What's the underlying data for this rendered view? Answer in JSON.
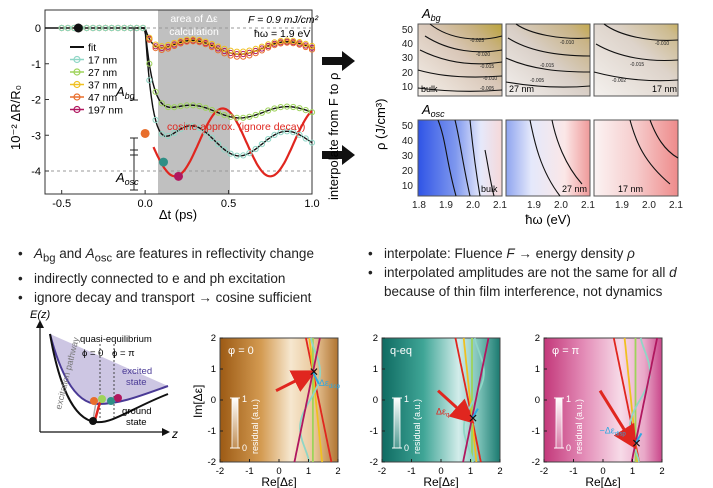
{
  "reflectivity_plot": {
    "ylabel": "10⁻² ΔR/R₀",
    "xlabel": "Δt (ps)",
    "xticks": [
      "-0.5",
      "0.0",
      "0.5",
      "1.0"
    ],
    "yticks": [
      "0",
      "-1",
      "-2",
      "-3",
      "-4"
    ],
    "fluence_line": "F = 0.9 mJ/cm²",
    "photon_energy_line": "ħω = 1.9 eV",
    "shaded_label_line1": "area of Δε",
    "shaded_label_line2": "calculation",
    "cosine_note": "cosine approx. (ignore decay)",
    "a_bg_label": "A",
    "a_bg_sub": "bg",
    "a_osc_label": "A",
    "a_osc_sub": "osc",
    "legend": [
      {
        "name": "fit",
        "color": "#111111"
      },
      {
        "name": "17 nm",
        "color": "#8fd6c6"
      },
      {
        "name": "27 nm",
        "color": "#9ed35a"
      },
      {
        "name": "37 nm",
        "color": "#f0c020"
      },
      {
        "name": "47 nm",
        "color": "#e86e2c"
      },
      {
        "name": "197 nm",
        "color": "#b0175f"
      }
    ]
  },
  "interpolation_label": "interpolate from F to ρ",
  "maps": {
    "a_bg_title": "A",
    "a_bg_sub": "bg",
    "a_osc_title": "A",
    "a_osc_sub": "osc",
    "ylabel": "ρ (J/cm³)",
    "xlabel": "ħω (eV)",
    "yticks": [
      "50",
      "40",
      "30",
      "20",
      "10"
    ],
    "xticks": [
      "1.8",
      "1.9",
      "2.0",
      "2.1",
      "1.9",
      "2.0",
      "2.1",
      "1.9",
      "2.0",
      "2.1"
    ],
    "panel_labels_top": [
      "bulk",
      "27 nm",
      "17 nm"
    ],
    "panel_labels_bottom": [
      "bulk",
      "27 nm",
      "17 nm"
    ],
    "contour_values": [
      "-0.025",
      "-0.020",
      "-0.015",
      "-0.010",
      "-0.005",
      "-0.010",
      "-0.015",
      "-0.005",
      "-0.010",
      "-0.015",
      "-0.002",
      "-0.004"
    ]
  },
  "bullets_left": [
    {
      "a": "A",
      "a_sub": "bg",
      "mid": " and ",
      "b": "A",
      "b_sub": "osc",
      "rest": " are features in reflectivity change"
    },
    {
      "text": "indirectly connected to e and ph excitation"
    },
    {
      "text": "ignore decay and transport → cosine sufficient"
    }
  ],
  "bullets_right": [
    {
      "text": "interpolate: Fluence ",
      "f": "F",
      "mid": " → energy density ",
      "rho": "ρ"
    },
    {
      "text": "interpolated amplitudes are not the same for all ",
      "d": "d"
    },
    {
      "text": "because of thin film interference, not dynamics"
    }
  ],
  "potential_diagram": {
    "ylabel": "E(z)",
    "xlabel": "z",
    "quasi": "quasi-equilibrium",
    "phi0": "ϕ = 0",
    "phipi": "ϕ = π",
    "excited1": "excited",
    "excited2": "state",
    "ground1": "ground",
    "ground2": "state",
    "pathway": "excitation pathway"
  },
  "residual_maps": {
    "ylabel": "Im[Δε]",
    "xlabel": "Re[Δε]",
    "xticks": [
      "-2",
      "-1",
      "0",
      "1",
      "2"
    ],
    "yticks": [
      "2",
      "1",
      "0",
      "-1",
      "-2"
    ],
    "colorbar_label": "residual (a.u.)",
    "cb_top": "1",
    "cb_bottom": "0",
    "panels": [
      {
        "title": "φ = 0",
        "annot": "Δε",
        "annot_sub": "disp"
      },
      {
        "title": "q-eq",
        "annot": "Δε",
        "annot_sub": "q-eq"
      },
      {
        "title": "φ = π",
        "annot": "−Δε",
        "annot_sub": "disp"
      }
    ]
  },
  "colors": {
    "shade": "#bdbdbd",
    "arrow": "#111111",
    "red": "#e0261f",
    "cyan": "#2ea8e0"
  }
}
